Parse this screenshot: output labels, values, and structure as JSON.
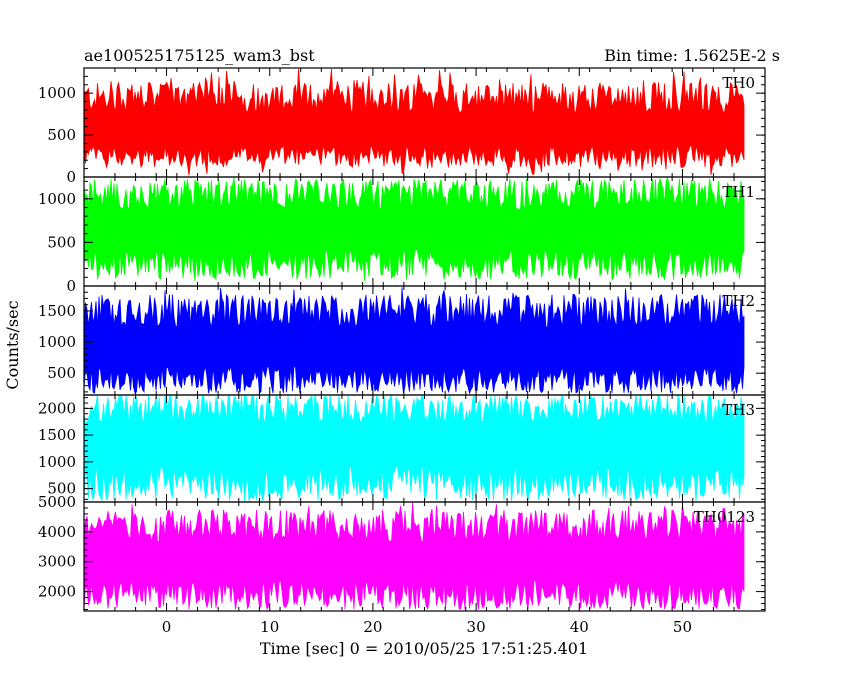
{
  "chart_data": {
    "type": "line",
    "title": "ae100525175125_wam3_bst",
    "subtitle": "Bin time: 1.5625E-2 s",
    "xlabel": "Time [sec] 0 = 2010/05/25 17:51:25.401",
    "ylabel": "Counts/sec",
    "xlim": [
      -8,
      58
    ],
    "x_range": [
      -8,
      56
    ],
    "x_ticks": [
      0,
      10,
      20,
      30,
      40,
      50
    ],
    "grid": false,
    "series": [
      {
        "name": "TH0",
        "color": "#ff0000",
        "ylim": [
          0,
          1300
        ],
        "y_ticks": [
          0,
          500,
          1000
        ],
        "mean": 550,
        "typical_low": 250,
        "typical_high": 950,
        "min": 20,
        "max": 1300
      },
      {
        "name": "TH1",
        "color": "#00ff00",
        "ylim": [
          0,
          1250
        ],
        "y_ticks": [
          0,
          500,
          1000
        ],
        "mean": 650,
        "typical_low": 250,
        "typical_high": 1050,
        "min": 50,
        "max": 1250
      },
      {
        "name": "TH2",
        "color": "#0000ff",
        "ylim": [
          150,
          1900
        ],
        "y_ticks": [
          500,
          1000,
          1500
        ],
        "mean": 900,
        "typical_low": 400,
        "typical_high": 1500,
        "min": 230,
        "max": 1880
      },
      {
        "name": "TH3",
        "color": "#00ffff",
        "ylim": [
          250,
          2250
        ],
        "y_ticks": [
          500,
          1000,
          1500,
          2000
        ],
        "mean": 1350,
        "typical_low": 600,
        "typical_high": 2000,
        "min": 300,
        "max": 2250
      },
      {
        "name": "TH0123",
        "color": "#ff00ff",
        "ylim": [
          1350,
          5000
        ],
        "y_ticks": [
          2000,
          3000,
          4000,
          5000
        ],
        "mean": 3000,
        "typical_low": 1900,
        "typical_high": 4200,
        "min": 1400,
        "max": 5000
      }
    ]
  }
}
